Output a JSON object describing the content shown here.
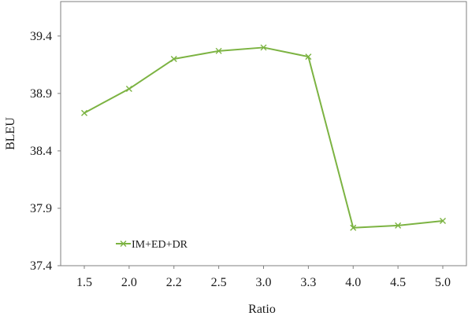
{
  "chart_data": {
    "type": "line",
    "title": "",
    "xlabel": "Ratio",
    "ylabel": "BLEU",
    "categories": [
      "1.5",
      "2.0",
      "2.2",
      "2.5",
      "3.0",
      "3.3",
      "4.0",
      "4.5",
      "5.0"
    ],
    "ylim": [
      37.4,
      39.7
    ],
    "yticks": [
      "37.4",
      "37.9",
      "38.4",
      "38.9",
      "39.4"
    ],
    "grid": false,
    "legend_position": "bottom-left",
    "series": [
      {
        "name": "IM+ED+DR",
        "values": [
          38.73,
          38.94,
          39.2,
          39.27,
          39.3,
          39.22,
          37.73,
          37.75,
          37.79
        ],
        "color": "#7cb342",
        "marker": "x"
      }
    ]
  }
}
